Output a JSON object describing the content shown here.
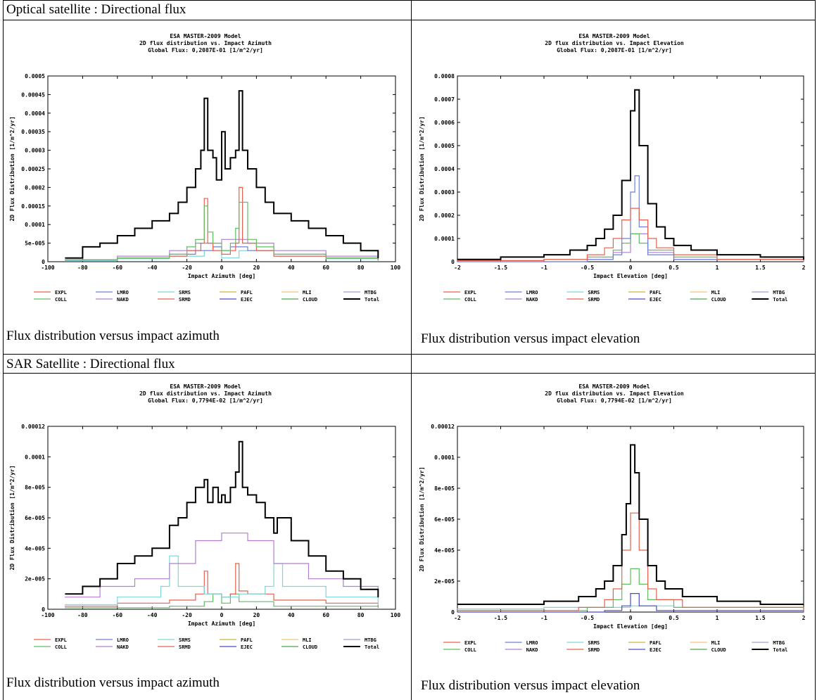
{
  "sections": [
    {
      "header": "Optical satellite : Directional flux",
      "captions": [
        "Flux distribution versus impact azimuth",
        "Flux distribution versus impact elevation"
      ]
    },
    {
      "header": "SAR Satellite : Directional flux",
      "captions": [
        "Flux distribution versus impact azimuth",
        "Flux distribution versus impact elevation"
      ]
    }
  ],
  "legend_labels": [
    "EXPL",
    "LMRO",
    "SRMS",
    "PAFL",
    "MLI",
    "MTBG",
    "COLL",
    "NAKD",
    "SRMD",
    "EJEC",
    "CLOUD",
    "Total"
  ],
  "legend_colors": [
    "#e8604c",
    "#6f7fd6",
    "#7fd6d6",
    "#c9b93c",
    "#f1c27a",
    "#a3a0cc",
    "#5fbf5f",
    "#b07fd0",
    "#e8604c",
    "#4a4ad0",
    "#4aa84a",
    "#000000"
  ],
  "chart_data": [
    {
      "type": "line",
      "title": "ESA MASTER-2009 Model",
      "subtitle": "2D flux distribution vs. Impact Azimuth",
      "global_flux": "Global Flux: 0,2087E-01 [1/m^2/yr]",
      "xlabel": "Impact Azimuth [deg]",
      "ylabel": "2D Flux Distribution [1/m^2/yr]",
      "xlim": [
        -100,
        100
      ],
      "ylim": [
        0,
        0.0005
      ],
      "xticks": [
        "-100",
        "-80",
        "-60",
        "-40",
        "-20",
        "0",
        "20",
        "40",
        "60",
        "80",
        "100"
      ],
      "yticks": [
        "0",
        "5e-005",
        "0.0001",
        "0.00015",
        "0.0002",
        "0.00025",
        "0.0003",
        "0.00035",
        "0.0004",
        "0.00045",
        "0.0005"
      ],
      "series": [
        {
          "name": "Total",
          "color": "#000000",
          "x": [
            -90,
            -80,
            -70,
            -60,
            -50,
            -40,
            -30,
            -25,
            -20,
            -15,
            -12,
            -10,
            -8,
            -5,
            -3,
            0,
            2,
            5,
            8,
            10,
            12,
            15,
            20,
            25,
            30,
            40,
            50,
            60,
            70,
            80,
            90
          ],
          "y": [
            1e-05,
            4e-05,
            5e-05,
            7e-05,
            9e-05,
            0.00011,
            0.00013,
            0.00016,
            0.0002,
            0.00025,
            0.0003,
            0.00044,
            0.0003,
            0.00028,
            0.00022,
            0.00035,
            0.00025,
            0.00028,
            0.0003,
            0.00046,
            0.0003,
            0.00025,
            0.0002,
            0.00016,
            0.00013,
            0.00011,
            9e-05,
            7e-05,
            5e-05,
            3e-05,
            1e-05
          ]
        },
        {
          "name": "COLL",
          "color": "#5fbf5f",
          "x": [
            -90,
            -60,
            -30,
            -20,
            -15,
            -10,
            -8,
            -5,
            0,
            5,
            8,
            10,
            15,
            20,
            30,
            60,
            90
          ],
          "y": [
            5e-06,
            1e-05,
            2e-05,
            4e-05,
            6e-05,
            0.00015,
            8e-05,
            5e-05,
            3e-05,
            5e-05,
            9e-05,
            0.00016,
            6e-05,
            4e-05,
            2e-05,
            1e-05,
            5e-06
          ]
        },
        {
          "name": "EXPL",
          "color": "#e8604c",
          "x": [
            -90,
            -60,
            -30,
            -20,
            -12,
            -10,
            -8,
            -5,
            0,
            5,
            8,
            10,
            12,
            20,
            30,
            60,
            90
          ],
          "y": [
            5e-06,
            1e-05,
            1.5e-05,
            3e-05,
            5e-05,
            0.00017,
            5e-05,
            3e-05,
            2e-05,
            3e-05,
            5e-05,
            0.0002,
            5e-05,
            3e-05,
            1.5e-05,
            1e-05,
            5e-06
          ]
        },
        {
          "name": "LMRO",
          "color": "#6f7fd6",
          "x": [
            -90,
            -60,
            -30,
            -15,
            -5,
            0,
            5,
            15,
            30,
            60,
            90
          ],
          "y": [
            5e-06,
            1e-05,
            2e-05,
            3e-05,
            4e-05,
            3e-05,
            4e-05,
            3e-05,
            2e-05,
            1e-05,
            5e-06
          ]
        },
        {
          "name": "SRMS",
          "color": "#7fd6d6",
          "x": [
            -90,
            -60,
            -30,
            -10,
            0,
            10,
            30,
            60,
            90
          ],
          "y": [
            3e-06,
            8e-06,
            1.5e-05,
            3e-05,
            1e-05,
            3e-05,
            1.5e-05,
            8e-06,
            3e-06
          ]
        },
        {
          "name": "NAKD",
          "color": "#b07fd0",
          "x": [
            -90,
            -60,
            -30,
            -15,
            0,
            15,
            30,
            60,
            90
          ],
          "y": [
            5e-06,
            1.5e-05,
            3e-05,
            5e-05,
            6e-05,
            5e-05,
            3e-05,
            1.5e-05,
            5e-06
          ]
        }
      ]
    },
    {
      "type": "line",
      "title": "ESA MASTER-2009 Model",
      "subtitle": "2D flux distribution vs. Impact Elevation",
      "global_flux": "Global Flux: 0,2087E-01 [1/m^2/yr]",
      "xlabel": "Impact Elevation [deg]",
      "ylabel": "2D Flux Distribution [1/m^2/yr]",
      "xlim": [
        -2,
        2
      ],
      "ylim": [
        0,
        0.0008
      ],
      "xticks": [
        "-2",
        "-1.5",
        "-1",
        "-0.5",
        "0",
        "0.5",
        "1",
        "1.5",
        "2"
      ],
      "yticks": [
        "0",
        "0.0001",
        "0.0002",
        "0.0003",
        "0.0004",
        "0.0005",
        "0.0006",
        "0.0007",
        "0.0008"
      ],
      "series": [
        {
          "name": "Total",
          "color": "#000000",
          "x": [
            -2,
            -1.5,
            -1,
            -0.7,
            -0.5,
            -0.4,
            -0.3,
            -0.2,
            -0.1,
            0,
            0.05,
            0.1,
            0.2,
            0.3,
            0.4,
            0.5,
            0.7,
            1,
            1.5,
            2
          ],
          "y": [
            1e-05,
            2e-05,
            3e-05,
            5e-05,
            7e-05,
            0.0001,
            0.00014,
            0.0002,
            0.00035,
            0.00065,
            0.00074,
            0.0005,
            0.00025,
            0.00015,
            0.0001,
            7e-05,
            5e-05,
            3e-05,
            2e-05,
            1e-05
          ]
        },
        {
          "name": "EXPL",
          "color": "#e8604c",
          "x": [
            -2,
            -1,
            -0.5,
            -0.3,
            -0.2,
            -0.1,
            0,
            0.1,
            0.2,
            0.3,
            0.5,
            1,
            2
          ],
          "y": [
            5e-06,
            1e-05,
            3e-05,
            6e-05,
            0.0001,
            0.00018,
            0.00023,
            0.00018,
            0.0001,
            6e-05,
            3e-05,
            1e-05,
            5e-06
          ]
        },
        {
          "name": "LMRO",
          "color": "#6f7fd6",
          "x": [
            -2,
            -0.5,
            -0.2,
            -0.1,
            0,
            0.05,
            0.1,
            0.2,
            0.5,
            2
          ],
          "y": [
            0,
            1e-05,
            3e-05,
            0.0001,
            0.0003,
            0.00037,
            0.00015,
            3e-05,
            1e-05,
            0
          ]
        },
        {
          "name": "COLL",
          "color": "#5fbf5f",
          "x": [
            -2,
            -1,
            -0.5,
            -0.2,
            -0.1,
            0,
            0.1,
            0.2,
            0.5,
            1,
            2
          ],
          "y": [
            5e-06,
            1e-05,
            2e-05,
            5e-05,
            8e-05,
            0.00012,
            8e-05,
            5e-05,
            2e-05,
            1e-05,
            5e-06
          ]
        },
        {
          "name": "NAKD",
          "color": "#b07fd0",
          "x": [
            -2,
            -0.5,
            -0.2,
            0,
            0.2,
            0.5,
            2
          ],
          "y": [
            0,
            1e-05,
            4e-05,
            0.00012,
            4e-05,
            1e-05,
            0
          ]
        }
      ]
    },
    {
      "type": "line",
      "title": "ESA MASTER-2009 Model",
      "subtitle": "2D flux distribution vs. Impact Azimuth",
      "global_flux": "Global Flux: 0,7794E-02 [1/m^2/yr]",
      "xlabel": "Impact Azimuth [deg]",
      "ylabel": "2D Flux Distribution [1/m^2/yr]",
      "xlim": [
        -100,
        100
      ],
      "ylim": [
        0,
        0.00012
      ],
      "xticks": [
        "-100",
        "-80",
        "-60",
        "-40",
        "-20",
        "0",
        "20",
        "40",
        "60",
        "80",
        "100"
      ],
      "yticks": [
        "0",
        "2e-005",
        "4e-005",
        "6e-005",
        "8e-005",
        "0.0001",
        "0.00012"
      ],
      "series": [
        {
          "name": "Total",
          "color": "#000000",
          "x": [
            -90,
            -80,
            -70,
            -60,
            -50,
            -40,
            -30,
            -25,
            -20,
            -15,
            -10,
            -8,
            -5,
            -2,
            0,
            2,
            5,
            8,
            10,
            12,
            15,
            20,
            25,
            30,
            32,
            40,
            50,
            60,
            70,
            80,
            90
          ],
          "y": [
            1e-05,
            1.5e-05,
            2e-05,
            3e-05,
            3.5e-05,
            4e-05,
            5.5e-05,
            6e-05,
            7e-05,
            8e-05,
            8.5e-05,
            7e-05,
            8e-05,
            7e-05,
            7.5e-05,
            7e-05,
            8e-05,
            9e-05,
            0.00011,
            8e-05,
            7.5e-05,
            7e-05,
            6e-05,
            5e-05,
            6e-05,
            4.5e-05,
            3.5e-05,
            2.5e-05,
            2e-05,
            1.3e-05,
            8e-06
          ]
        },
        {
          "name": "NAKD",
          "color": "#b07fd0",
          "x": [
            -90,
            -70,
            -50,
            -30,
            -15,
            0,
            15,
            30,
            50,
            70,
            90
          ],
          "y": [
            8e-06,
            1.5e-05,
            2e-05,
            3e-05,
            4.5e-05,
            5e-05,
            4.5e-05,
            3e-05,
            2e-05,
            1.5e-05,
            8e-06
          ]
        },
        {
          "name": "SRMS",
          "color": "#7fd6d6",
          "x": [
            -90,
            -60,
            -35,
            -30,
            -25,
            -10,
            0,
            10,
            25,
            30,
            35,
            60,
            90
          ],
          "y": [
            3e-06,
            8e-06,
            1.5e-05,
            3.5e-05,
            1.5e-05,
            1e-05,
            8e-06,
            1e-05,
            1.5e-05,
            3e-05,
            1.5e-05,
            8e-06,
            3e-06
          ]
        },
        {
          "name": "EXPL",
          "color": "#e8604c",
          "x": [
            -90,
            -60,
            -30,
            -15,
            -10,
            -8,
            -5,
            0,
            5,
            8,
            10,
            15,
            30,
            60,
            90
          ],
          "y": [
            2e-06,
            4e-06,
            6e-06,
            1e-05,
            2.5e-05,
            1e-05,
            1e-05,
            8e-06,
            1e-05,
            3e-05,
            1.2e-05,
            1e-05,
            6e-06,
            4e-06,
            2e-06
          ]
        },
        {
          "name": "COLL",
          "color": "#5fbf5f",
          "x": [
            -90,
            -30,
            -10,
            -5,
            0,
            5,
            10,
            30,
            90
          ],
          "y": [
            1e-06,
            2e-06,
            5e-06,
            1e-05,
            4e-06,
            1e-05,
            5e-06,
            2e-06,
            1e-06
          ]
        }
      ]
    },
    {
      "type": "line",
      "title": "ESA MASTER-2009 Model",
      "subtitle": "2D flux distribution vs. Impact Elevation",
      "global_flux": "Global Flux: 0,7794E-02 [1/m^2/yr]",
      "xlabel": "Impact Elevation [deg]",
      "ylabel": "2D Flux Distribution [1/m^2/yr]",
      "xlim": [
        -2,
        2
      ],
      "ylim": [
        0,
        0.00012
      ],
      "xticks": [
        "-2",
        "-1.5",
        "-1",
        "-0.5",
        "0",
        "0.5",
        "1",
        "1.5",
        "2"
      ],
      "yticks": [
        "0",
        "2e-005",
        "4e-005",
        "6e-005",
        "8e-005",
        "0.0001",
        "0.00012"
      ],
      "series": [
        {
          "name": "Total",
          "color": "#000000",
          "x": [
            -2,
            -1.5,
            -1,
            -0.6,
            -0.4,
            -0.3,
            -0.2,
            -0.1,
            -0.05,
            0,
            0.05,
            0.1,
            0.2,
            0.3,
            0.4,
            0.6,
            1,
            1.5,
            2
          ],
          "y": [
            5e-06,
            5e-06,
            7e-06,
            1e-05,
            1.5e-05,
            2e-05,
            3e-05,
            5e-05,
            7e-05,
            0.000108,
            9e-05,
            6e-05,
            3e-05,
            2e-05,
            1.5e-05,
            1e-05,
            7e-06,
            5e-06,
            5e-06
          ]
        },
        {
          "name": "EXPL",
          "color": "#e8604c",
          "x": [
            -2,
            -0.6,
            -0.3,
            -0.2,
            -0.1,
            0,
            0.1,
            0.2,
            0.3,
            0.6,
            2
          ],
          "y": [
            1e-06,
            3e-06,
            8e-06,
            1.5e-05,
            4e-05,
            6.4e-05,
            4e-05,
            1.5e-05,
            8e-06,
            3e-06,
            1e-06
          ]
        },
        {
          "name": "COLL",
          "color": "#5fbf5f",
          "x": [
            -2,
            -0.5,
            -0.2,
            -0.1,
            0,
            0.1,
            0.2,
            0.5,
            2
          ],
          "y": [
            1e-06,
            3e-06,
            8e-06,
            1.8e-05,
            2.8e-05,
            1.8e-05,
            8e-06,
            3e-06,
            1e-06
          ]
        },
        {
          "name": "EJEC",
          "color": "#4a4ad0",
          "x": [
            -2,
            -0.3,
            -0.1,
            0,
            0.1,
            0.3,
            2
          ],
          "y": [
            0,
            1e-06,
            4e-06,
            1.2e-05,
            4e-06,
            1e-06,
            0
          ]
        },
        {
          "name": "SRMS",
          "color": "#7fd6d6",
          "x": [
            -2,
            -1,
            -0.5,
            0,
            0.5,
            1,
            2
          ],
          "y": [
            2e-06,
            3e-06,
            3e-06,
            4e-06,
            3e-06,
            3e-06,
            2e-06
          ]
        }
      ]
    }
  ]
}
